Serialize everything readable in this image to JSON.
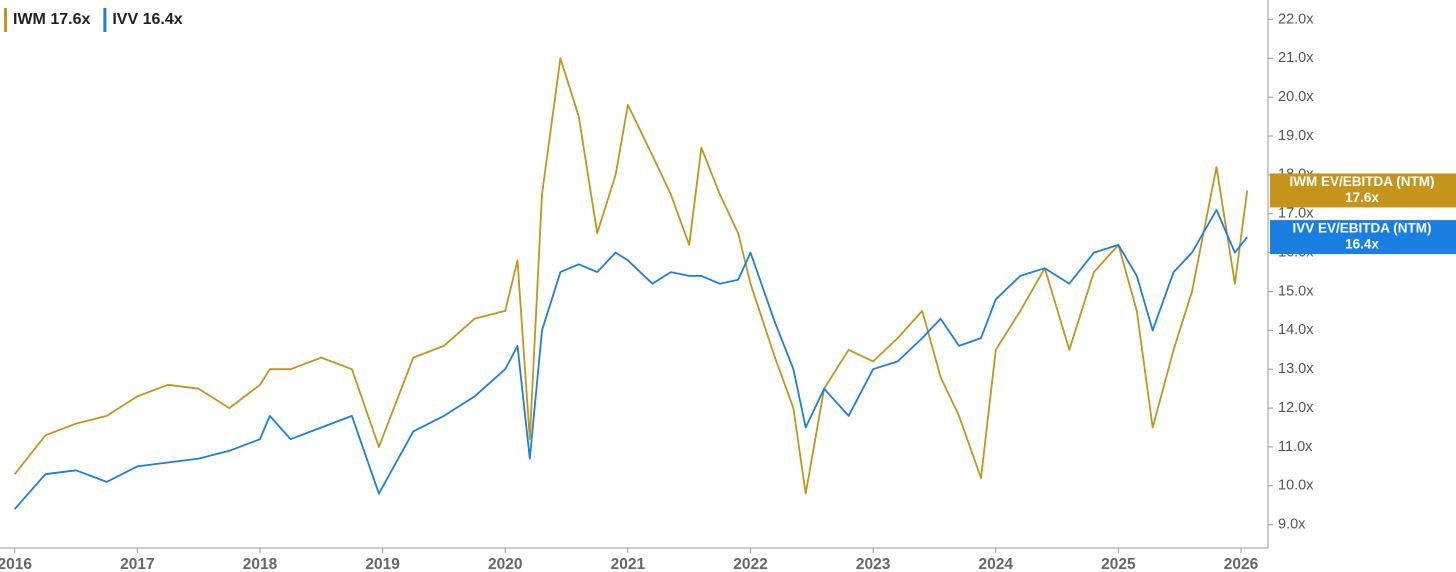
{
  "chart_data": {
    "type": "line",
    "x": [
      2016.0,
      2016.25,
      2016.5,
      2016.75,
      2017.0,
      2017.25,
      2017.5,
      2017.75,
      2018.0,
      2018.08,
      2018.25,
      2018.5,
      2018.75,
      2018.97,
      2019.25,
      2019.5,
      2019.75,
      2020.0,
      2020.1,
      2020.2,
      2020.3,
      2020.45,
      2020.6,
      2020.75,
      2020.9,
      2021.0,
      2021.2,
      2021.35,
      2021.5,
      2021.6,
      2021.75,
      2021.9,
      2022.0,
      2022.2,
      2022.35,
      2022.45,
      2022.6,
      2022.8,
      2023.0,
      2023.2,
      2023.4,
      2023.55,
      2023.7,
      2023.88,
      2024.0,
      2024.2,
      2024.4,
      2024.6,
      2024.8,
      2025.0,
      2025.15,
      2025.28,
      2025.45,
      2025.6,
      2025.8,
      2025.95,
      2026.05
    ],
    "series": [
      {
        "name": "IWM",
        "legend_label": "IWM 17.6x",
        "end_label": "IWM EV/EBITDA (NTM)",
        "end_value_label": "17.6x",
        "color": "#c4951a",
        "values": [
          10.3,
          11.3,
          11.6,
          11.8,
          12.3,
          12.6,
          12.5,
          12.0,
          12.6,
          13.0,
          13.0,
          13.3,
          13.0,
          11.0,
          13.3,
          13.6,
          14.3,
          14.5,
          15.8,
          11.2,
          17.5,
          21.0,
          19.5,
          16.5,
          18.0,
          19.8,
          18.5,
          17.5,
          16.2,
          18.7,
          17.5,
          16.5,
          15.2,
          13.3,
          12.0,
          9.8,
          12.5,
          13.5,
          13.2,
          13.8,
          14.5,
          12.8,
          11.8,
          10.2,
          13.5,
          14.5,
          15.6,
          13.5,
          15.5,
          16.2,
          14.5,
          11.5,
          13.5,
          15.0,
          18.2,
          15.2,
          17.6
        ]
      },
      {
        "name": "IVV",
        "legend_label": "IVV 16.4x",
        "end_label": "IVV EV/EBITDA (NTM)",
        "end_value_label": "16.4x",
        "color": "#1a7fe0",
        "values": [
          9.4,
          10.3,
          10.4,
          10.1,
          10.5,
          10.6,
          10.7,
          10.9,
          11.2,
          11.8,
          11.2,
          11.5,
          11.8,
          9.8,
          11.4,
          11.8,
          12.3,
          13.0,
          13.6,
          10.7,
          14.0,
          15.5,
          15.7,
          15.5,
          16.0,
          15.8,
          15.2,
          15.5,
          15.4,
          15.4,
          15.2,
          15.3,
          16.0,
          14.2,
          13.0,
          11.5,
          12.5,
          11.8,
          13.0,
          13.2,
          13.8,
          14.3,
          13.6,
          13.8,
          14.8,
          15.4,
          15.6,
          15.2,
          16.0,
          16.2,
          15.4,
          14.0,
          15.5,
          16.0,
          17.1,
          16.0,
          16.4
        ]
      }
    ],
    "xlim": [
      2015.88,
      2026.22
    ],
    "xticks": [
      2016,
      2017,
      2018,
      2019,
      2020,
      2021,
      2022,
      2023,
      2024,
      2025,
      2026
    ],
    "ylim": [
      8.4,
      22.5
    ],
    "yticks": [
      {
        "value": 9,
        "label": "9.0x"
      },
      {
        "value": 10,
        "label": "10.0x"
      },
      {
        "value": 11,
        "label": "11.0x"
      },
      {
        "value": 12,
        "label": "12.0x"
      },
      {
        "value": 13,
        "label": "13.0x"
      },
      {
        "value": 14,
        "label": "14.0x"
      },
      {
        "value": 15,
        "label": "15.0x"
      },
      {
        "value": 16,
        "label": "16.0x"
      },
      {
        "value": 17,
        "label": "17.0x"
      },
      {
        "value": 18,
        "label": "18.0x"
      },
      {
        "value": 19,
        "label": "19.0x"
      },
      {
        "value": 20,
        "label": "20.0x"
      },
      {
        "value": 21,
        "label": "21.0x"
      },
      {
        "value": 22,
        "label": "22.0x"
      }
    ],
    "grid": false
  }
}
